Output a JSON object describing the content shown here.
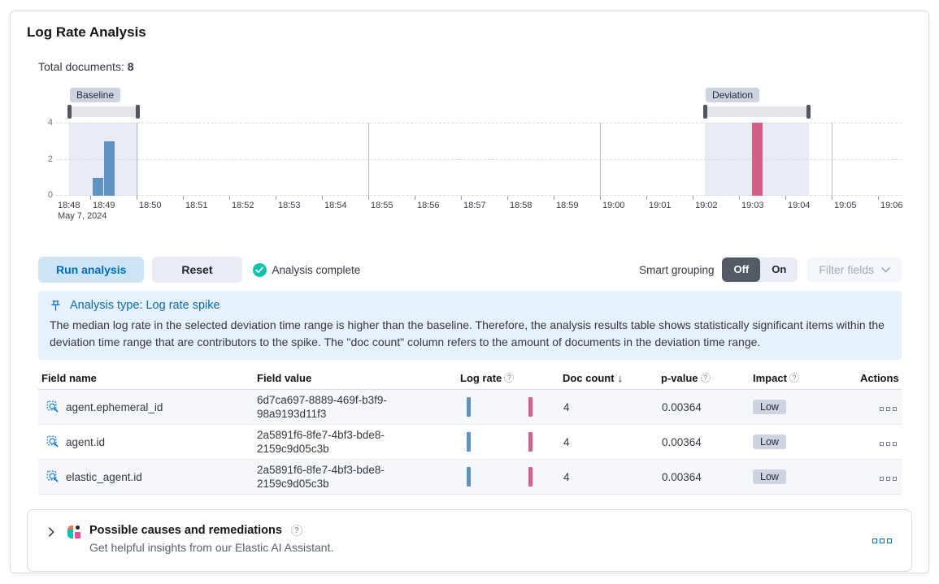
{
  "page": {
    "title": "Log Rate Analysis"
  },
  "summary": {
    "label": "Total documents:",
    "value": "8"
  },
  "chart_data": {
    "type": "bar",
    "x_axis": {
      "tick_labels": [
        "18:48",
        "18:49",
        "18:50",
        "18:51",
        "18:52",
        "18:53",
        "18:54",
        "18:55",
        "18:56",
        "18:57",
        "18:58",
        "18:59",
        "19:00",
        "19:01",
        "19:02",
        "19:03",
        "19:04",
        "19:05",
        "19:06"
      ],
      "date_label": "May 7, 2024",
      "major_gridline_minutes": [
        2,
        7,
        12,
        17
      ]
    },
    "y_axis": {
      "tick_labels": [
        "4",
        "2",
        "0"
      ],
      "max": 4
    },
    "bars": [
      {
        "time": "18:49:00",
        "minutes": 1.05,
        "count": 1,
        "series": "baseline"
      },
      {
        "time": "18:49:15",
        "minutes": 1.3,
        "count": 3,
        "series": "baseline"
      },
      {
        "time": "19:03:15",
        "minutes": 15.28,
        "count": 4,
        "series": "deviation"
      }
    ],
    "baseline": {
      "label": "Baseline",
      "from_minutes": 0.55,
      "to_minutes": 2.03
    },
    "deviation": {
      "label": "Deviation",
      "from_minutes": 14.26,
      "to_minutes": 16.51
    },
    "colors": {
      "baseline_bar": "#6092c0",
      "deviation_bar": "#d36086",
      "selection": "#e9ecf4"
    }
  },
  "toolbar": {
    "run_button": "Run analysis",
    "reset_button": "Reset",
    "status_text": "Analysis complete",
    "smart_grouping_label": "Smart grouping",
    "toggle_off": "Off",
    "toggle_on": "On",
    "filter_fields_button": "Filter fields"
  },
  "callout": {
    "title": "Analysis type: Log rate spike",
    "body": "The median log rate in the selected deviation time range is higher than the baseline. Therefore, the analysis results table shows statistically significant items within the deviation time range that are contributors to the spike. The \"doc count\" column refers to the amount of documents in the deviation time range."
  },
  "table": {
    "columns": [
      "Field name",
      "Field value",
      "Log rate",
      "Doc count",
      "p-value",
      "Impact",
      "Actions"
    ],
    "sorted_by": "Doc count",
    "rows": [
      {
        "field_name": "agent.ephemeral_id",
        "field_value": "6d7ca697-8889-469f-b3f9-98a9193d11f3",
        "doc_count": "4",
        "p_value": "0.00364",
        "impact": "Low"
      },
      {
        "field_name": "agent.id",
        "field_value": "2a5891f6-8fe7-4bf3-bde8-2159c9d05c3b",
        "doc_count": "4",
        "p_value": "0.00364",
        "impact": "Low"
      },
      {
        "field_name": "elastic_agent.id",
        "field_value": "2a5891f6-8fe7-4bf3-bde8-2159c9d05c3b",
        "doc_count": "4",
        "p_value": "0.00364",
        "impact": "Low"
      }
    ]
  },
  "ai_panel": {
    "title": "Possible causes and remediations",
    "subtitle": "Get helpful insights from our Elastic AI Assistant."
  },
  "icons": {
    "status": "check-circle",
    "field_filter": "search-filter",
    "row_actions": "boxes-horizontal",
    "help": "question-circle",
    "callout": "pushpin",
    "accordion": "chevron-right",
    "ai_logo": "elastic-ai-assistant-logo",
    "sort": "arrow-down",
    "dropdown": "chevron-down"
  }
}
